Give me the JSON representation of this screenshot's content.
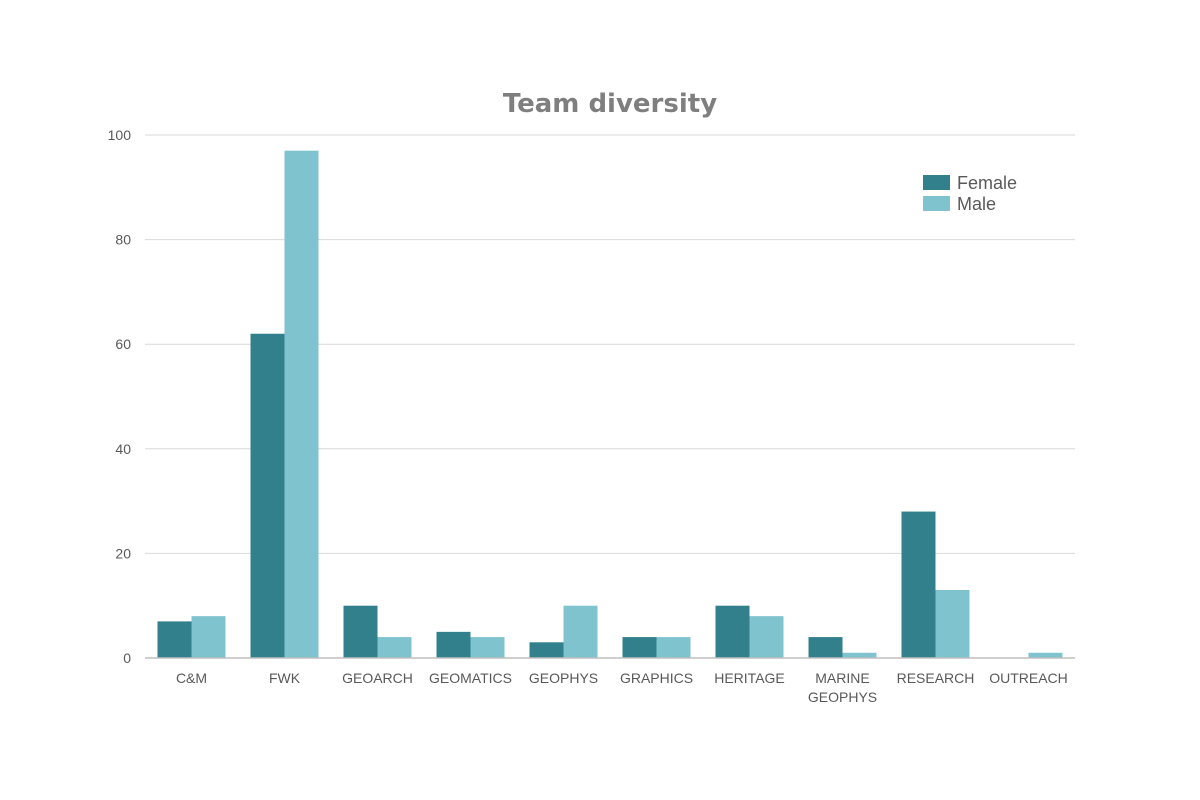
{
  "chart_data": {
    "type": "bar",
    "title": "Team diversity",
    "xlabel": "",
    "ylabel": "",
    "ylim": [
      0,
      100
    ],
    "yticks": [
      "0",
      "20",
      "40",
      "60",
      "80",
      "100"
    ],
    "categories": [
      [
        "C&M"
      ],
      [
        "FWK"
      ],
      [
        "GEOARCH"
      ],
      [
        "GEOMATICS"
      ],
      [
        "GEOPHYS"
      ],
      [
        "GRAPHICS"
      ],
      [
        "HERITAGE"
      ],
      [
        "MARINE",
        "GEOPHYS"
      ],
      [
        "RESEARCH"
      ],
      [
        "OUTREACH"
      ]
    ],
    "series": [
      {
        "name": "Female",
        "color": "#31808c",
        "values": [
          7,
          62,
          10,
          5,
          3,
          4,
          10,
          4,
          28,
          0
        ]
      },
      {
        "name": "Male",
        "color": "#7fc3cf",
        "values": [
          8,
          97,
          4,
          4,
          10,
          4,
          8,
          1,
          13,
          1
        ]
      }
    ],
    "grid": true,
    "legend_position": "top-right"
  }
}
